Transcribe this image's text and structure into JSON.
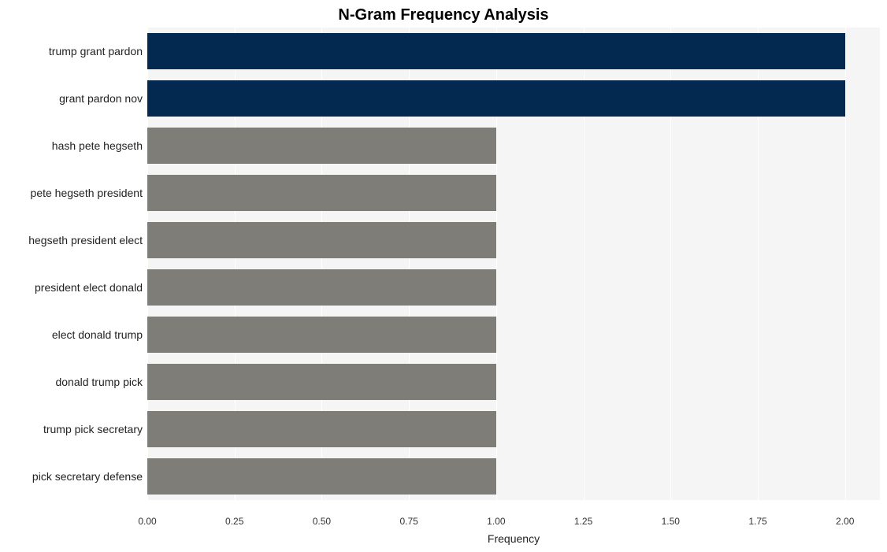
{
  "chart": {
    "type": "bar-horizontal",
    "title": "N-Gram Frequency Analysis",
    "title_fontsize": 20,
    "title_fontweight": "bold",
    "xlabel": "Frequency",
    "xlabel_fontsize": 14,
    "background_color": "#ffffff",
    "plot_background_color": "#f5f5f5",
    "grid_color": "#ffffff",
    "xlim": [
      0,
      2.1
    ],
    "xticks": [
      0.0,
      0.25,
      0.5,
      0.75,
      1.0,
      1.25,
      1.5,
      1.75,
      2.0
    ],
    "xtick_labels": [
      "0.00",
      "0.25",
      "0.50",
      "0.75",
      "1.00",
      "1.25",
      "1.50",
      "1.75",
      "2.00"
    ],
    "xtick_fontsize": 12,
    "ylabel_fontsize": 14,
    "bar_height_ratio": 0.78,
    "bars": [
      {
        "label": "trump grant pardon",
        "value": 2.0,
        "color": "#032950"
      },
      {
        "label": "grant pardon nov",
        "value": 2.0,
        "color": "#032950"
      },
      {
        "label": "hash pete hegseth",
        "value": 1.0,
        "color": "#7f7d77"
      },
      {
        "label": "pete hegseth president",
        "value": 1.0,
        "color": "#7f7d77"
      },
      {
        "label": "hegseth president elect",
        "value": 1.0,
        "color": "#7f7d77"
      },
      {
        "label": "president elect donald",
        "value": 1.0,
        "color": "#7f7d77"
      },
      {
        "label": "elect donald trump",
        "value": 1.0,
        "color": "#7f7d77"
      },
      {
        "label": "donald trump pick",
        "value": 1.0,
        "color": "#7f7d77"
      },
      {
        "label": "trump pick secretary",
        "value": 1.0,
        "color": "#7f7d77"
      },
      {
        "label": "pick secretary defense",
        "value": 1.0,
        "color": "#7f7d77"
      }
    ]
  }
}
